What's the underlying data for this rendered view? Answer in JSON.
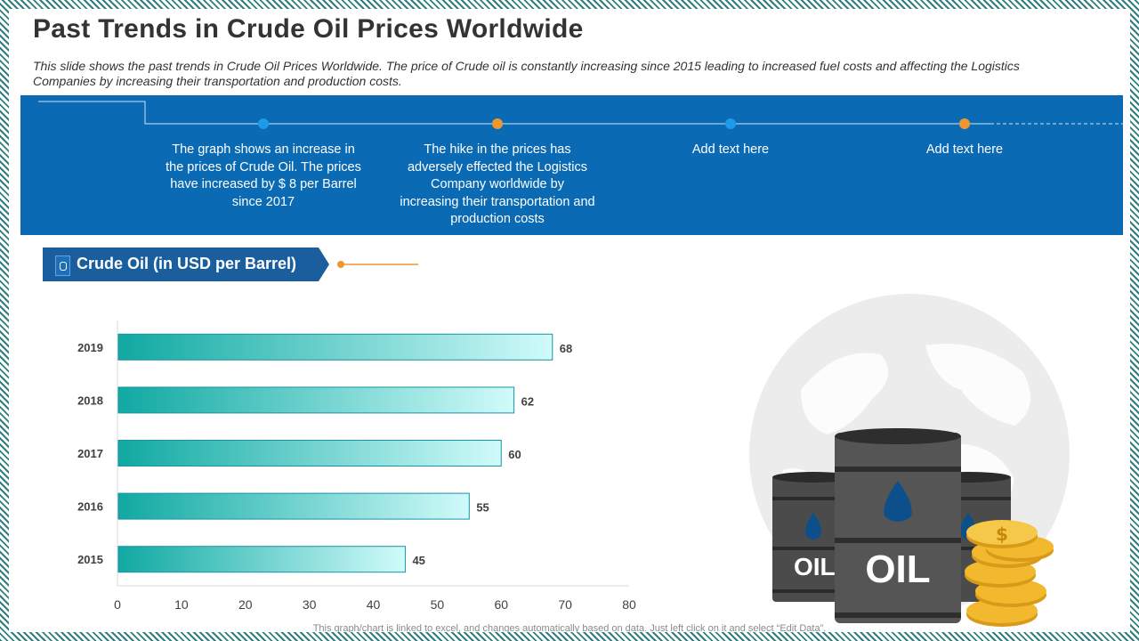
{
  "title": "Past Trends in Crude Oil Prices Worldwide",
  "subtitle": "This slide shows the past trends in Crude Oil Prices Worldwide.  The price of Crude  oil is constantly increasing since 2015 leading to increased fuel costs and affecting the Logistics Companies by increasing their transportation  and production costs.",
  "timeline": [
    {
      "text": "The graph shows an increase in the prices of Crude Oil. The prices have increased by $ 8 per Barrel since 2017",
      "dot_color": "#1e9be8"
    },
    {
      "text": "The hike in the prices has adversely effected the Logistics Company worldwide  by increasing their transportation and production  costs",
      "dot_color": "#f0962e"
    },
    {
      "text": "Add text here",
      "dot_color": "#1e9be8"
    },
    {
      "text": "Add text here",
      "dot_color": "#f0962e"
    }
  ],
  "section": {
    "label": "Crude Oil (in USD per Barrel)",
    "icon": "oil-barrel-icon"
  },
  "colors": {
    "banner": "#0a6ab4",
    "tag": "#1b5e9e",
    "bar_start": "#10a9a2",
    "bar_end": "#d0fbfa",
    "bar_border": "#1a93a6",
    "accent_orange": "#f0962e",
    "accent_blue": "#1e9be8"
  },
  "chart_data": {
    "type": "bar",
    "orientation": "horizontal",
    "categories": [
      "2019",
      "2018",
      "2017",
      "2016",
      "2015"
    ],
    "values": [
      68,
      62,
      60,
      55,
      45
    ],
    "title": "",
    "xlabel": "",
    "ylabel": "",
    "xlim": [
      0,
      80
    ],
    "xticks": [
      0,
      10,
      20,
      30,
      40,
      50,
      60,
      70,
      80
    ],
    "grid": false,
    "legend": "none",
    "data_labels": true
  },
  "illustration": {
    "barrel_label": "OIL",
    "coin_symbol": "$",
    "icons": [
      "globe-icon",
      "oil-barrel-icon",
      "coin-stack-icon"
    ]
  },
  "footnote": "This graph/chart is linked to excel, and changes automatically based on data. Just left click on it and select “Edit Data”."
}
